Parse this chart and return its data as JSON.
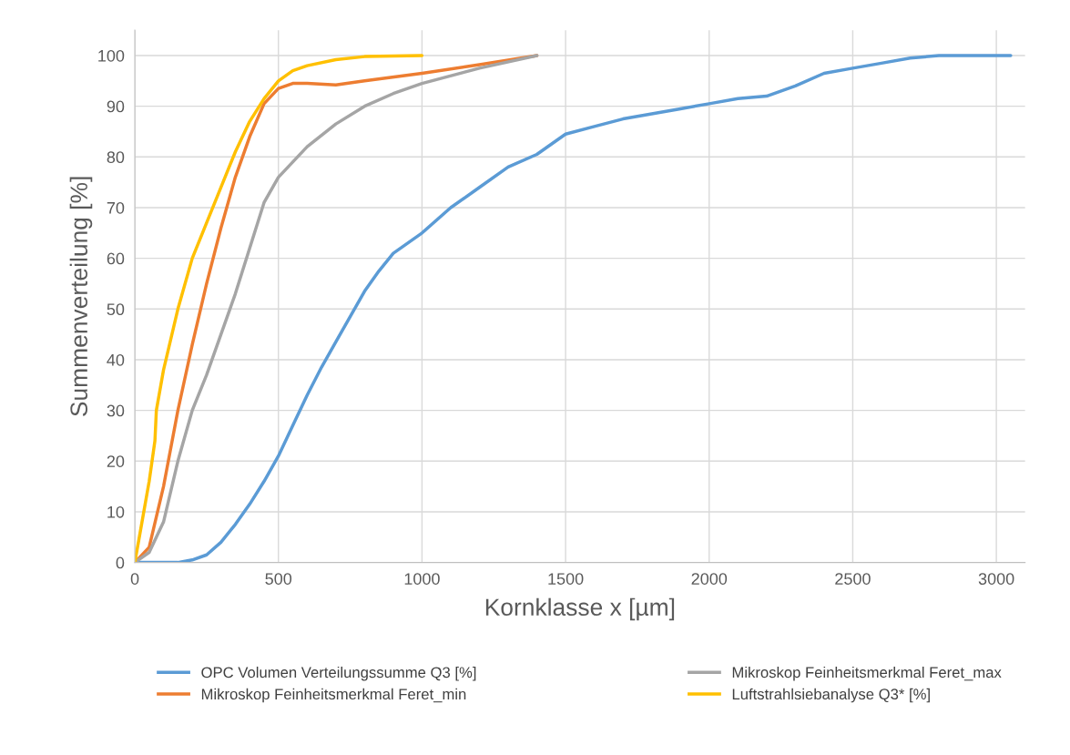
{
  "chart_data": {
    "type": "line",
    "xlabel": "Kornklasse x [µm]",
    "ylabel": "Summenverteilung [%]",
    "xlim": [
      0,
      3100
    ],
    "xticks": [
      0,
      500,
      1000,
      1500,
      2000,
      2500,
      3000
    ],
    "ylim": [
      0,
      105
    ],
    "yticks": [
      0,
      10,
      20,
      30,
      40,
      50,
      60,
      70,
      80,
      90,
      100
    ],
    "grid": true,
    "legend": "bottom",
    "marker": "none",
    "line_style": "solid",
    "series": [
      {
        "name": "OPC Volumen Verteilungssumme Q3 [%]",
        "color": "#5b9bd5",
        "x": [
          0,
          100,
          150,
          200,
          250,
          300,
          350,
          400,
          450,
          500,
          550,
          600,
          650,
          700,
          750,
          800,
          850,
          900,
          1000,
          1100,
          1200,
          1300,
          1400,
          1500,
          1600,
          1700,
          1800,
          1900,
          2000,
          2100,
          2200,
          2300,
          2400,
          2500,
          2600,
          2700,
          2800,
          2900,
          3050
        ],
        "values": [
          0,
          0,
          0,
          0.5,
          1.5,
          4,
          7.5,
          11.5,
          16,
          21,
          27,
          33,
          38.5,
          43.5,
          48.5,
          53.5,
          57.5,
          61,
          65,
          70,
          74,
          78,
          80.5,
          84.5,
          86,
          87.5,
          88.5,
          89.5,
          90.5,
          91.5,
          92,
          94,
          96.5,
          97.5,
          98.5,
          99.5,
          100,
          100,
          100
        ]
      },
      {
        "name": "Mikroskop Feinheitsmerkmal Feret_min",
        "color": "#ed7d31",
        "x": [
          0,
          50,
          100,
          150,
          200,
          250,
          300,
          350,
          400,
          450,
          500,
          550,
          600,
          700,
          800,
          1000,
          1200,
          1400
        ],
        "values": [
          0,
          3,
          15,
          30,
          43,
          55,
          66,
          76,
          84,
          90.5,
          93.5,
          94.5,
          94.5,
          94.2,
          95,
          96.5,
          98.2,
          100
        ]
      },
      {
        "name": "Mikroskop Feinheitsmerkmal Feret_max",
        "color": "#a5a5a5",
        "x": [
          0,
          50,
          100,
          150,
          200,
          250,
          300,
          350,
          400,
          450,
          500,
          600,
          700,
          800,
          900,
          1000,
          1200,
          1400
        ],
        "values": [
          0,
          2,
          8,
          20,
          30,
          37,
          45,
          53,
          62,
          71,
          76,
          82,
          86.5,
          90,
          92.5,
          94.5,
          97.5,
          100
        ]
      },
      {
        "name": "Luftstrahlsiebanalyse Q3* [%]",
        "color": "#ffc000",
        "x": [
          0,
          25,
          50,
          70,
          75,
          100,
          150,
          200,
          250,
          300,
          350,
          400,
          450,
          500,
          550,
          600,
          700,
          800,
          1000
        ],
        "values": [
          0,
          8,
          16,
          24,
          30,
          38,
          50,
          60,
          67,
          74,
          81,
          87,
          91.5,
          95,
          97,
          98,
          99.2,
          99.8,
          100
        ]
      }
    ]
  }
}
